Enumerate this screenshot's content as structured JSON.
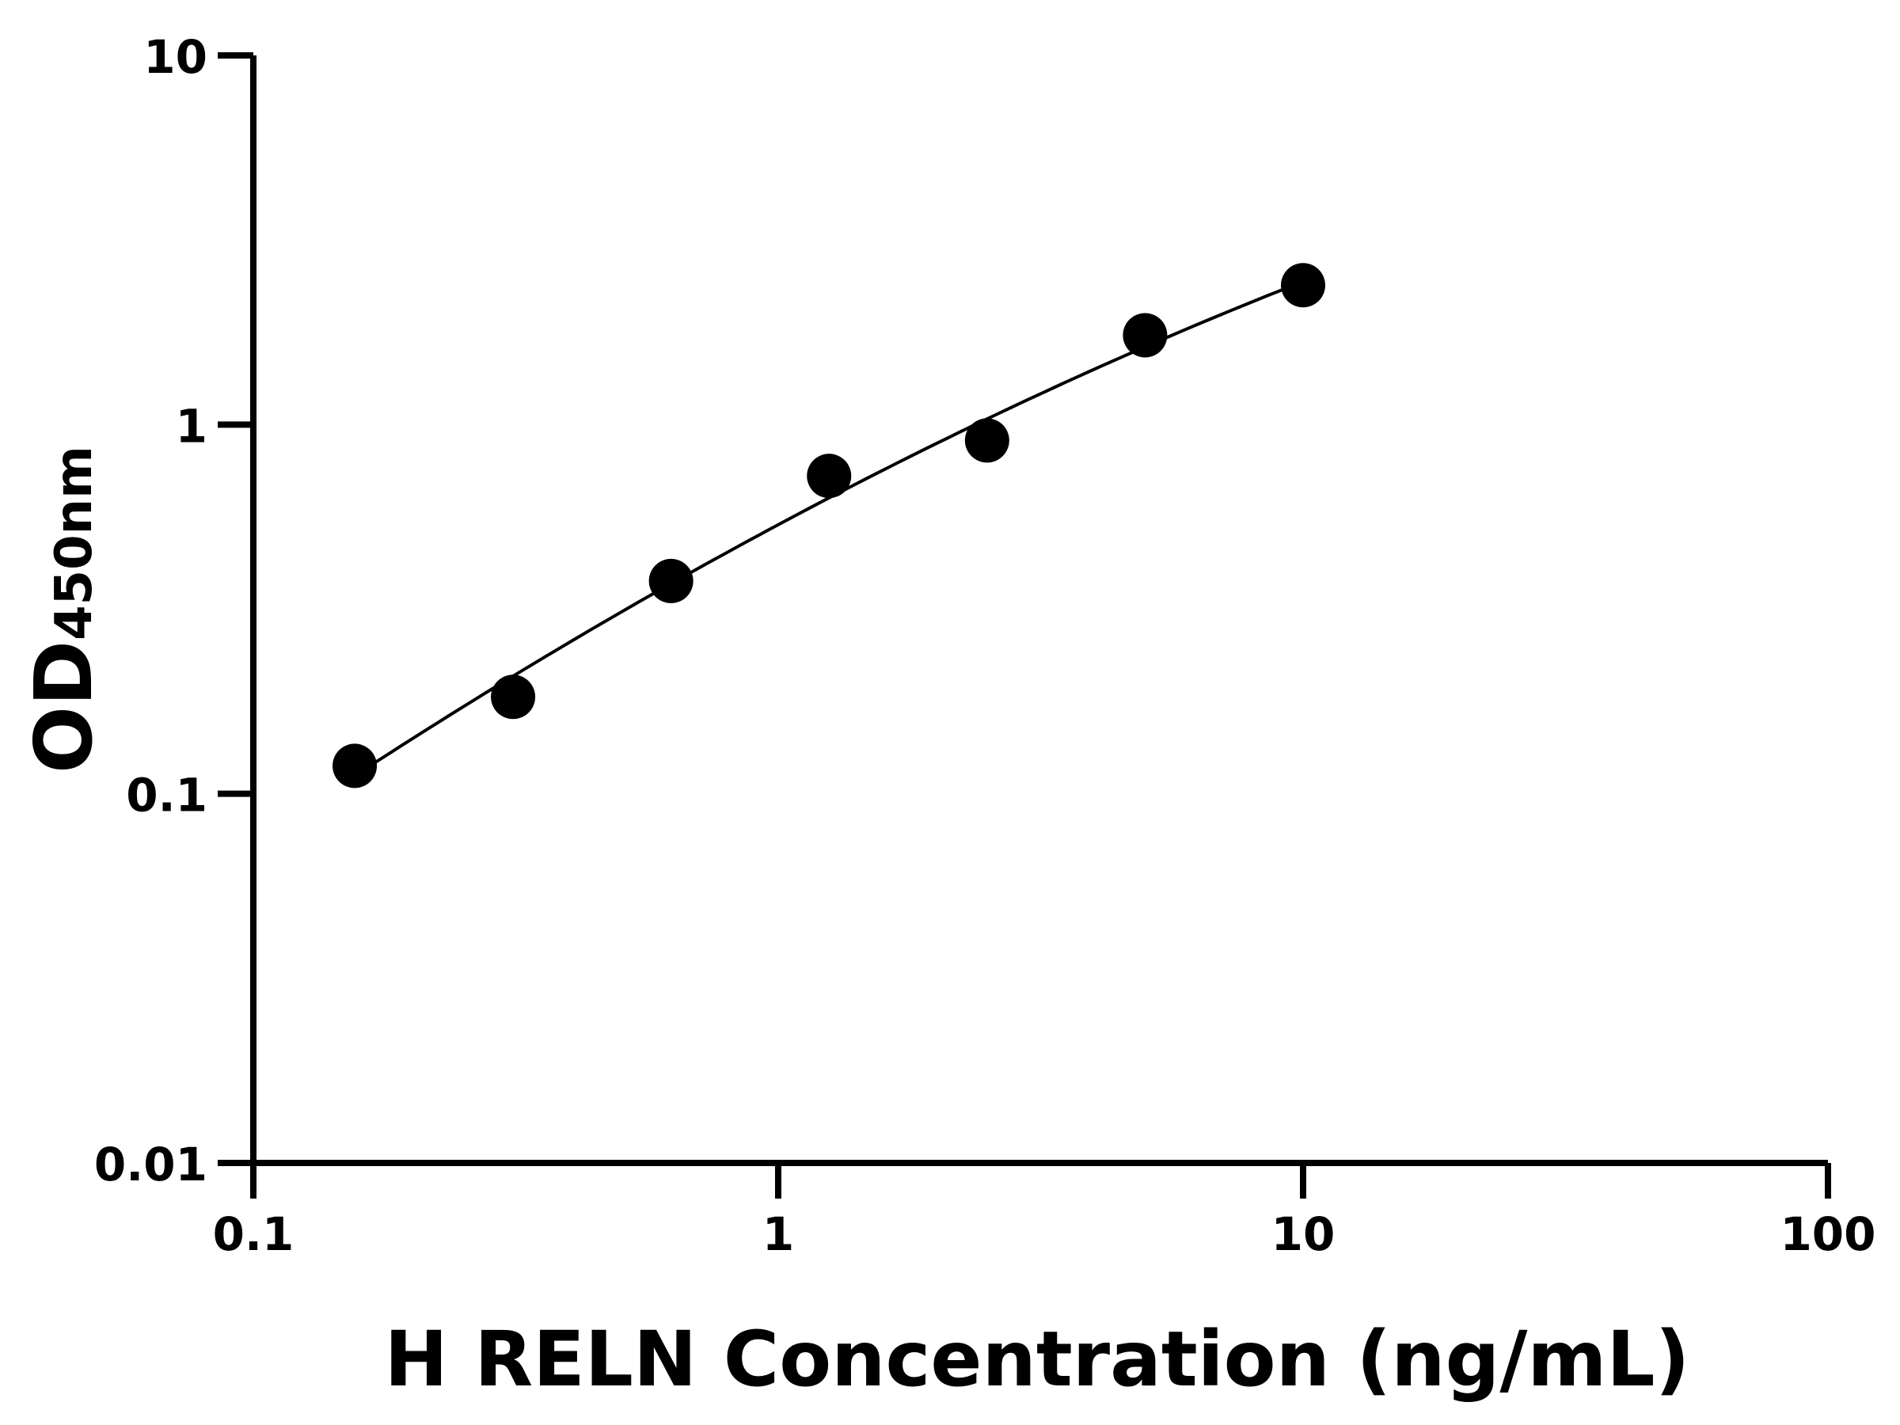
{
  "chart_data": {
    "type": "scatter",
    "xlabel": "H RELN Concentration (ng/mL)",
    "ylabel": {
      "main": "OD",
      "sub": "450nm"
    },
    "xscale": "log",
    "yscale": "log",
    "xlim": [
      0.1,
      100
    ],
    "ylim": [
      0.01,
      10
    ],
    "xticks": [
      "0.1",
      "1",
      "10",
      "100"
    ],
    "yticks": [
      "0.01",
      "0.1",
      "1",
      "10"
    ],
    "grid": false,
    "fit_curve": true,
    "x": [
      0.156,
      0.3125,
      0.625,
      1.25,
      2.5,
      5,
      10
    ],
    "y": [
      0.119,
      0.183,
      0.377,
      0.726,
      0.906,
      1.746,
      2.385
    ],
    "color": "#000000"
  }
}
